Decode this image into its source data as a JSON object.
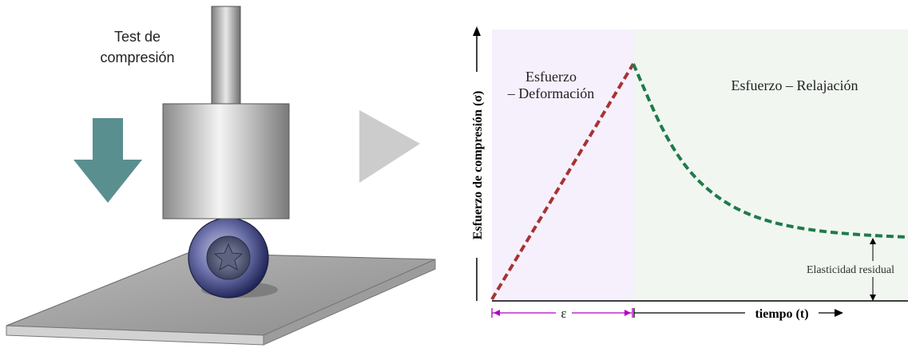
{
  "illustration": {
    "test_label_line1": "Test de",
    "test_label_line2": "compresión"
  },
  "chart_data": {
    "type": "line",
    "ylabel": "Esfuerzo de compresión (σ)",
    "xlabel": "tiempo (t)",
    "strain_label": "ε",
    "phases": [
      {
        "name_line1": "Esfuerzo",
        "name_line2": "– Deformación",
        "fill": "#f6f0fd"
      },
      {
        "name": "Esfuerzo – Relajación",
        "fill": "#f1f6f1"
      }
    ],
    "annotation": "Elasticidad residual",
    "series": [
      {
        "color": "#a83232",
        "style": "dashed",
        "segment": "loading"
      },
      {
        "color": "#1f7a4a",
        "style": "dashed",
        "segment": "relaxation"
      }
    ],
    "colors": {
      "strain_bracket": "#b000c8",
      "arrow_down": "#5a8f8f",
      "arrow_right": "#cccccc"
    }
  }
}
